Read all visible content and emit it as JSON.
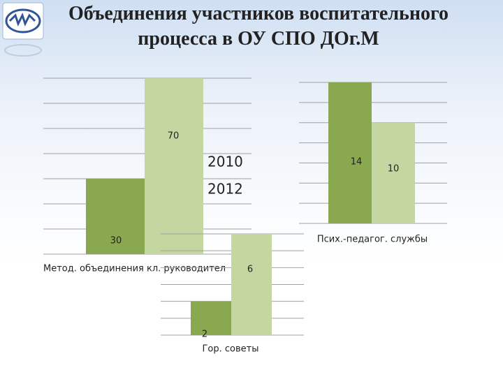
{
  "slide": {
    "title": "Объединения участников воспитательного процесса в ОУ СПО ДОг.М"
  },
  "chart_data": [
    {
      "type": "bar",
      "categories": [
        "Метод. объединения кл. руководител"
      ],
      "series": [
        {
          "name": "2010",
          "color": "#8aa84f",
          "values": [
            30
          ]
        },
        {
          "name": "2012",
          "color": "#c4d7a0",
          "values": [
            70
          ]
        }
      ],
      "ylim": [
        0,
        70
      ],
      "yticks": [
        0,
        10,
        20,
        30,
        40,
        50,
        60,
        70
      ],
      "grid": true,
      "legend": "center"
    },
    {
      "type": "bar",
      "categories": [
        "Псих.-педагог. службы"
      ],
      "series": [
        {
          "color": "#8aa84f",
          "values": [
            14
          ]
        },
        {
          "color": "#c4d7a0",
          "values": [
            10
          ]
        }
      ],
      "ylim": [
        0,
        14
      ],
      "yticks": [
        0,
        2,
        4,
        6,
        8,
        10,
        12,
        14
      ],
      "grid": true
    },
    {
      "type": "bar",
      "categories": [
        "Гор. советы"
      ],
      "series": [
        {
          "color": "#8aa84f",
          "values": [
            2
          ]
        },
        {
          "color": "#c4d7a0",
          "values": [
            6
          ]
        }
      ],
      "ylim": [
        0,
        6
      ],
      "yticks": [
        0,
        1,
        2,
        3,
        4,
        5,
        6
      ],
      "grid": true
    }
  ]
}
